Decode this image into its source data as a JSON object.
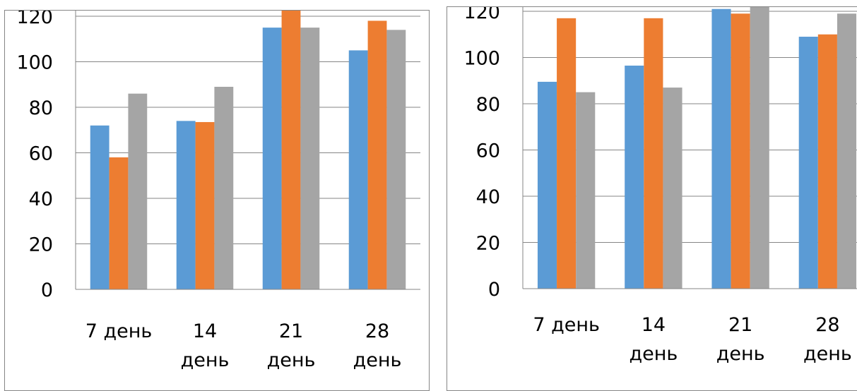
{
  "colors": {
    "series_1": "#5B9BD5",
    "series_2": "#ED7D31",
    "series_3": "#A5A5A5",
    "gridline": "#868686",
    "axis": "#868686",
    "text": "#000000"
  },
  "chart_data": [
    {
      "type": "bar",
      "title": "",
      "xlabel": "",
      "ylabel": "",
      "ylim": [
        0,
        120
      ],
      "yticks": [
        "0",
        "20",
        "40",
        "60",
        "80",
        "100",
        "120"
      ],
      "grid": true,
      "legend": "none",
      "categories": [
        [
          "7 день"
        ],
        [
          "14",
          "день"
        ],
        [
          "21",
          "день"
        ],
        [
          "28",
          "день"
        ]
      ],
      "series": [
        {
          "values": [
            72,
            74,
            115,
            105
          ]
        },
        {
          "values": [
            58,
            73.5,
            125,
            118
          ]
        },
        {
          "values": [
            86,
            89,
            115,
            114
          ]
        }
      ]
    },
    {
      "type": "bar",
      "title": "",
      "xlabel": "",
      "ylabel": "",
      "ylim": [
        0,
        120
      ],
      "yticks": [
        "0",
        "20",
        "40",
        "60",
        "80",
        "100",
        "120"
      ],
      "grid": true,
      "legend": "none",
      "categories": [
        [
          "7 день"
        ],
        [
          "14",
          "день"
        ],
        [
          "21",
          "день"
        ],
        [
          "28",
          "день"
        ]
      ],
      "series": [
        {
          "values": [
            89.5,
            96.5,
            121,
            109
          ]
        },
        {
          "values": [
            117,
            117,
            119,
            110
          ]
        },
        {
          "values": [
            85,
            87,
            126,
            119
          ]
        }
      ]
    }
  ]
}
